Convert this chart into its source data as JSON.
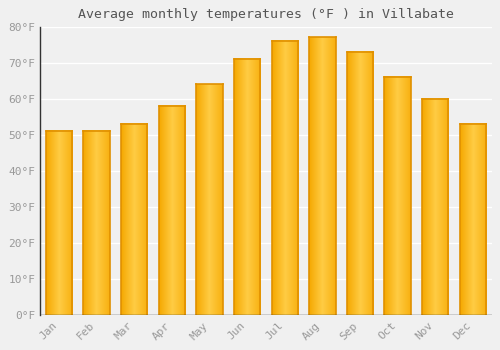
{
  "title": "Average monthly temperatures (°F ) in Villabate",
  "months": [
    "Jan",
    "Feb",
    "Mar",
    "Apr",
    "May",
    "Jun",
    "Jul",
    "Aug",
    "Sep",
    "Oct",
    "Nov",
    "Dec"
  ],
  "values": [
    51,
    51,
    53,
    58,
    64,
    71,
    76,
    77,
    73,
    66,
    60,
    53
  ],
  "bar_color_bottom": "#F5A800",
  "bar_color_top": "#FFCC44",
  "bar_color_right_edge": "#E09000",
  "bar_color_left_edge": "#E09000",
  "background_color": "#F0F0F0",
  "grid_color": "#FFFFFF",
  "tick_label_color": "#999999",
  "title_color": "#555555",
  "spine_color": "#333333",
  "ylim": [
    0,
    80
  ],
  "yticks": [
    0,
    10,
    20,
    30,
    40,
    50,
    60,
    70,
    80
  ],
  "ytick_labels": [
    "0°F",
    "10°F",
    "20°F",
    "30°F",
    "40°F",
    "50°F",
    "60°F",
    "70°F",
    "80°F"
  ],
  "bar_width": 0.7,
  "figsize": [
    5.0,
    3.5
  ],
  "dpi": 100
}
